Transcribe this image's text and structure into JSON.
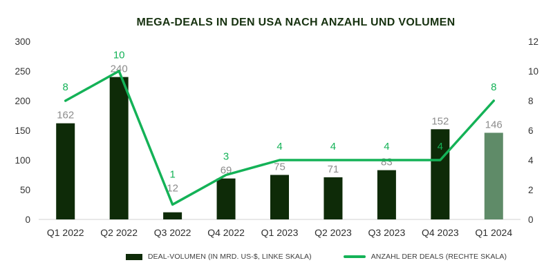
{
  "title": "MEGA-DEALS IN DEN USA NACH ANZAHL UND VOLUMEN",
  "chart_data": {
    "type": "combo",
    "categories": [
      "Q1 2022",
      "Q2 2022",
      "Q3 2022",
      "Q4 2022",
      "Q1 2023",
      "Q2 2023",
      "Q3 2023",
      "Q4 2023",
      "Q1 2024"
    ],
    "series": [
      {
        "name": "DEAL-VOLUMEN (IN MRD. US-$, LINKE SKALA)",
        "type": "bar",
        "axis": "left",
        "values": [
          162,
          240,
          12,
          69,
          75,
          71,
          83,
          152,
          146
        ]
      },
      {
        "name": "ANZAHL DER DEALS (RECHTE SKALA)",
        "type": "line",
        "axis": "right",
        "values": [
          8,
          10,
          1,
          3,
          4,
          4,
          4,
          4,
          8
        ]
      }
    ],
    "left_axis": {
      "min": 0,
      "max": 300,
      "step": 50,
      "ticks": [
        0,
        50,
        100,
        150,
        200,
        250,
        300
      ]
    },
    "right_axis": {
      "min": 0,
      "max": 12,
      "step": 2,
      "ticks": [
        0,
        2,
        4,
        6,
        8,
        10,
        12
      ]
    },
    "highlight_last_bar": true,
    "data_labels": true,
    "grid": false,
    "legend_position": "bottom"
  },
  "colors": {
    "bar": "#0e2b08",
    "bar_highlight": "#5f8b68",
    "line": "#14b257",
    "line_label": "#14b257",
    "bar_label": "#8c8c8c",
    "axis_label": "#333333",
    "category_label": "#2e2e2e",
    "baseline": "#d9d9d9",
    "title": "#16310f",
    "legend_text": "#3d3d3d",
    "background": "#ffffff"
  }
}
